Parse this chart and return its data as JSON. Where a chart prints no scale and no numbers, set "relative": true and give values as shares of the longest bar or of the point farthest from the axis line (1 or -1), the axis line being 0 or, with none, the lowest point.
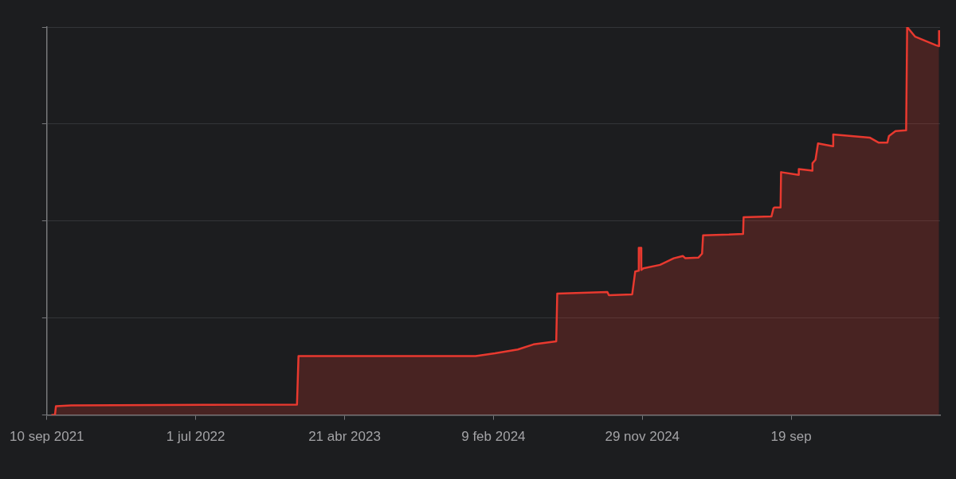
{
  "chart_data": {
    "type": "area",
    "relative": true,
    "grid": "y",
    "legend": false,
    "xlim": [
      "2021-09-10",
      "2026-07-10"
    ],
    "xticks": [
      {
        "value": "2021-09-10",
        "label": "10 sep 2021"
      },
      {
        "value": "2022-07-01",
        "label": "1 jul 2022"
      },
      {
        "value": "2023-04-21",
        "label": "21 abr 2023"
      },
      {
        "value": "2024-02-09",
        "label": "9 feb 2024"
      },
      {
        "value": "2024-11-29",
        "label": "29 nov 2024"
      },
      {
        "value": "2025-09-19",
        "label": "19 sep"
      }
    ],
    "series": [
      {
        "color": "#e8392f",
        "x": [
          "2021-09-19",
          "2021-09-26",
          "2021-09-28",
          "2021-10-28",
          "2023-01-17",
          "2023-01-20",
          "2023-04-15",
          "2024-01-05",
          "2024-02-12",
          "2024-03-28",
          "2024-04-28",
          "2024-06-12",
          "2024-06-14",
          "2024-09-21",
          "2024-09-24",
          "2024-11-09",
          "2024-11-15",
          "2024-11-21",
          "2024-11-22",
          "2024-11-26",
          "2024-11-27",
          "2024-12-01",
          "2025-01-03",
          "2025-01-30",
          "2025-02-17",
          "2025-02-22",
          "2025-03-20",
          "2025-03-27",
          "2025-03-29",
          "2025-05-19",
          "2025-06-16",
          "2025-06-17",
          "2025-08-11",
          "2025-08-15",
          "2025-08-17",
          "2025-08-29",
          "2025-08-30",
          "2025-10-03",
          "2025-10-04",
          "2025-10-30",
          "2025-10-31",
          "2025-11-06",
          "2025-11-11",
          "2025-12-10",
          "2025-12-11",
          "2026-02-21",
          "2026-03-11",
          "2026-03-28",
          "2026-03-31",
          "2026-04-13",
          "2026-05-04",
          "2026-05-06",
          "2026-05-22",
          "2026-07-02",
          "2026-07-07",
          "2026-07-08"
        ],
        "values": [
          0,
          0,
          0.023,
          0.025,
          0.027,
          0.152,
          0.152,
          0.152,
          0.159,
          0.169,
          0.182,
          0.19,
          0.313,
          0.317,
          0.309,
          0.311,
          0.37,
          0.372,
          0.431,
          0.431,
          0.374,
          0.378,
          0.387,
          0.404,
          0.41,
          0.404,
          0.406,
          0.416,
          0.463,
          0.465,
          0.467,
          0.51,
          0.512,
          0.533,
          0.535,
          0.535,
          0.626,
          0.619,
          0.634,
          0.63,
          0.649,
          0.658,
          0.7,
          0.693,
          0.723,
          0.715,
          0.702,
          0.702,
          0.719,
          0.732,
          0.734,
          1.0,
          0.975,
          0.953,
          0.951,
          0.992
        ]
      }
    ]
  }
}
